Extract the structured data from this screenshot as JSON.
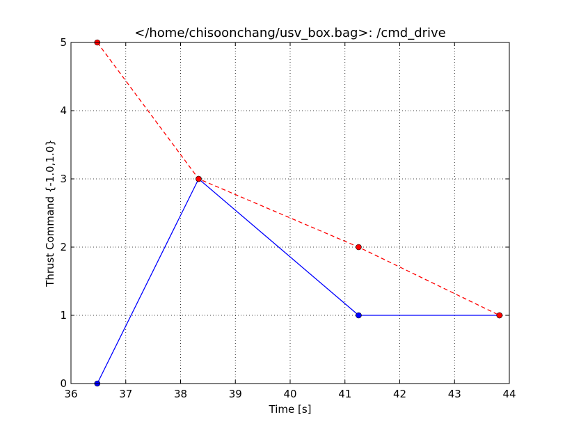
{
  "chart_data": {
    "type": "line",
    "title": "</home/chisoonchang/usv_box.bag>: /cmd_drive",
    "xlabel": "Time [s]",
    "ylabel": "Thrust Command {-1.0,1.0}",
    "xlim": [
      36,
      44
    ],
    "ylim": [
      0,
      5
    ],
    "xticks": [
      "36",
      "37",
      "38",
      "39",
      "40",
      "41",
      "42",
      "43",
      "44"
    ],
    "yticks": [
      "0",
      "1",
      "2",
      "3",
      "4",
      "5"
    ],
    "grid": true,
    "legend": "none",
    "series": [
      {
        "color": "#0000ff",
        "line_style": "solid",
        "marker": "circle",
        "x": [
          36.48,
          38.33,
          41.25,
          43.82
        ],
        "y": [
          0,
          3,
          1,
          1
        ]
      },
      {
        "color": "#ff0000",
        "line_style": "dashed",
        "marker": "circle",
        "x": [
          36.48,
          38.33,
          41.25,
          43.82
        ],
        "y": [
          5,
          3,
          2,
          1
        ]
      }
    ]
  }
}
